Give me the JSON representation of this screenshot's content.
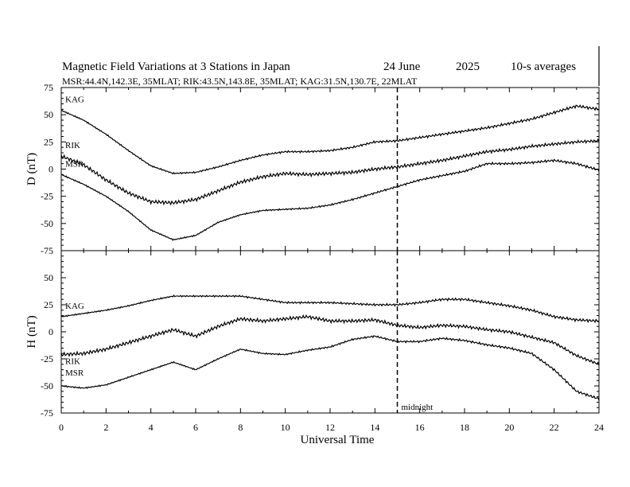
{
  "chart_data": {
    "type": "line",
    "title": {
      "main": "Magnetic Field Variations at 3 Stations in Japan",
      "date": "24 June",
      "year": "2025",
      "resolution": "10-s averages"
    },
    "subtitle": "MSR:44.4N,142.3E, 35MLAT;  RIK:43.5N,143.8E, 35MLAT;  KAG:31.5N,130.7E, 22MLAT",
    "xlabel": "Universal Time",
    "xlim": [
      0,
      24
    ],
    "xticks": [
      "0",
      "2",
      "4",
      "6",
      "8",
      "10",
      "12",
      "14",
      "16",
      "18",
      "20",
      "22",
      "24"
    ],
    "annotation": {
      "text": "midnight",
      "x": 15
    },
    "panels": [
      {
        "ylabel": "D (nT)",
        "ylim": [
          -75,
          75
        ],
        "yticks": [
          "75",
          "50",
          "25",
          "0",
          "-25",
          "-50",
          "-75"
        ],
        "x": [
          0,
          1,
          2,
          3,
          4,
          5,
          6,
          7,
          8,
          9,
          10,
          11,
          12,
          13,
          14,
          15,
          16,
          17,
          18,
          19,
          20,
          21,
          22,
          23,
          24
        ],
        "series": [
          {
            "name": "KAG",
            "values": [
              54,
              45,
              32,
              17,
              3,
              -4,
              -3,
              2,
              8,
              13,
              16,
              16,
              17,
              20,
              25,
              26,
              29,
              32,
              35,
              38,
              42,
              46,
              52,
              58,
              55
            ]
          },
          {
            "name": "RIK",
            "values": [
              12,
              4,
              -10,
              -22,
              -30,
              -31,
              -28,
              -20,
              -12,
              -7,
              -4,
              -5,
              -4,
              -3,
              0,
              2,
              5,
              8,
              12,
              16,
              18,
              21,
              23,
              25,
              26
            ]
          },
          {
            "name": "MSR",
            "values": [
              -5,
              -14,
              -25,
              -39,
              -56,
              -65,
              -61,
              -49,
              -42,
              -38,
              -37,
              -36,
              -33,
              -28,
              -22,
              -16,
              -10,
              -6,
              -2,
              5,
              5,
              6,
              8,
              5,
              -1
            ]
          }
        ]
      },
      {
        "ylabel": "H (nT)",
        "ylim": [
          -75,
          75
        ],
        "yticks": [
          "75",
          "50",
          "25",
          "0",
          "-25",
          "-50",
          "-75"
        ],
        "x": [
          0,
          1,
          2,
          3,
          4,
          5,
          6,
          7,
          8,
          9,
          10,
          11,
          12,
          13,
          14,
          15,
          16,
          17,
          18,
          19,
          20,
          21,
          22,
          23,
          24
        ],
        "series": [
          {
            "name": "KAG",
            "values": [
              14,
              17,
              20,
              24,
              29,
              33,
              33,
              33,
              33,
              30,
              27,
              27,
              27,
              26,
              25,
              25,
              27,
              30,
              30,
              27,
              24,
              20,
              14,
              11,
              10
            ]
          },
          {
            "name": "RIK",
            "values": [
              -21,
              -20,
              -16,
              -10,
              -4,
              2,
              -4,
              5,
              12,
              10,
              12,
              14,
              10,
              10,
              11,
              6,
              4,
              6,
              5,
              2,
              0,
              -5,
              -10,
              -22,
              -30
            ]
          },
          {
            "name": "MSR",
            "values": [
              -50,
              -52,
              -49,
              -42,
              -35,
              -28,
              -35,
              -25,
              -16,
              -20,
              -21,
              -17,
              -14,
              -7,
              -4,
              -9,
              -9,
              -6,
              -8,
              -12,
              -15,
              -20,
              -35,
              -55,
              -62
            ]
          }
        ]
      }
    ]
  }
}
